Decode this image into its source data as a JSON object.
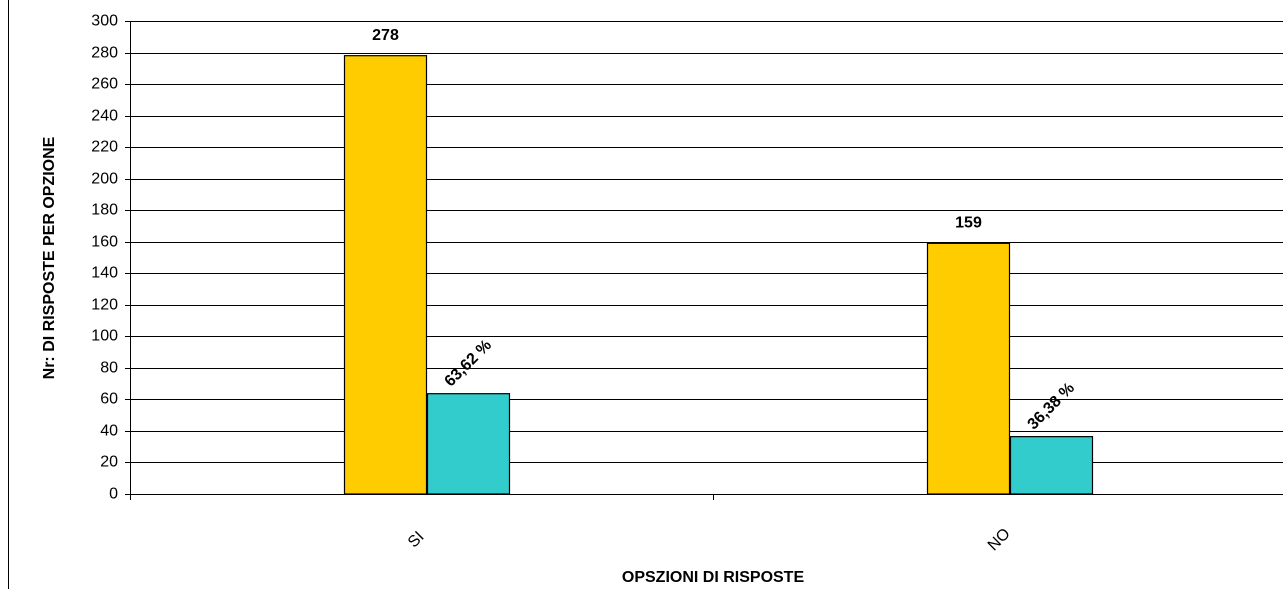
{
  "chart_data": {
    "type": "bar",
    "x_label": "OPSZIONI DI RISPOSTE",
    "y_label": "Nr: DI RISPOSTE PER OPZIONE",
    "categories": [
      "SI",
      "NO"
    ],
    "series": [
      {
        "color": "#ffcc00",
        "values": [
          278,
          159
        ]
      },
      {
        "color": "#33cccc",
        "values": [
          63.62,
          36.38
        ],
        "value_labels": [
          "63,62 %",
          "36,38 %"
        ]
      }
    ],
    "ylim": [
      0,
      300
    ],
    "yticks": [
      0,
      20,
      40,
      60,
      80,
      100,
      120,
      140,
      160,
      180,
      200,
      220,
      240,
      260,
      280,
      300
    ],
    "grid": true
  }
}
